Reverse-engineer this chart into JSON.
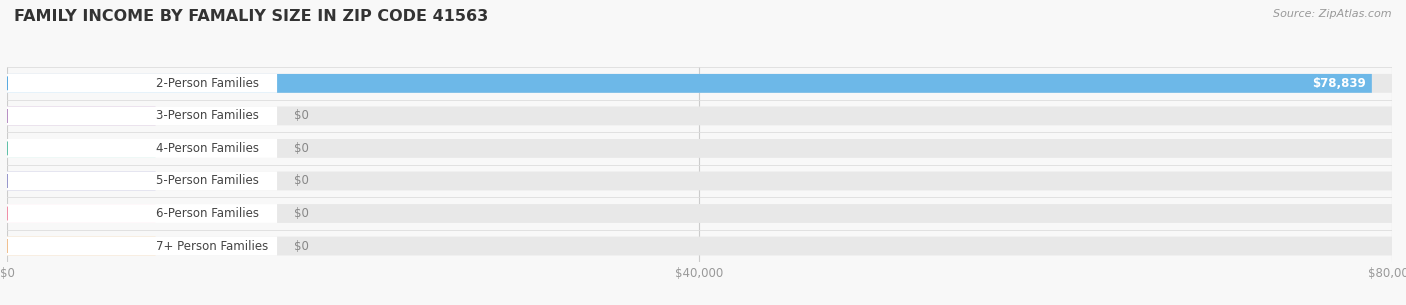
{
  "title": "FAMILY INCOME BY FAMALIY SIZE IN ZIP CODE 41563",
  "source": "Source: ZipAtlas.com",
  "categories": [
    "2-Person Families",
    "3-Person Families",
    "4-Person Families",
    "5-Person Families",
    "6-Person Families",
    "7+ Person Families"
  ],
  "values": [
    78839,
    0,
    0,
    0,
    0,
    0
  ],
  "bar_colors": [
    "#6db8e8",
    "#c4a0cc",
    "#72ccb8",
    "#aaaad8",
    "#f4a0b4",
    "#f8d0a0"
  ],
  "circle_colors": [
    "#5aaae0",
    "#b890c4",
    "#60c0a8",
    "#9898cc",
    "#f090a8",
    "#f0c090"
  ],
  "max_value": 80000,
  "xticks": [
    0,
    40000,
    80000
  ],
  "xtick_labels": [
    "$0",
    "$40,000",
    "$80,000"
  ],
  "value_label": "$78,839",
  "background_color": "#f8f8f8",
  "bar_bg_color": "#e8e8e8",
  "title_fontsize": 11.5,
  "label_fontsize": 8.5,
  "source_fontsize": 8
}
